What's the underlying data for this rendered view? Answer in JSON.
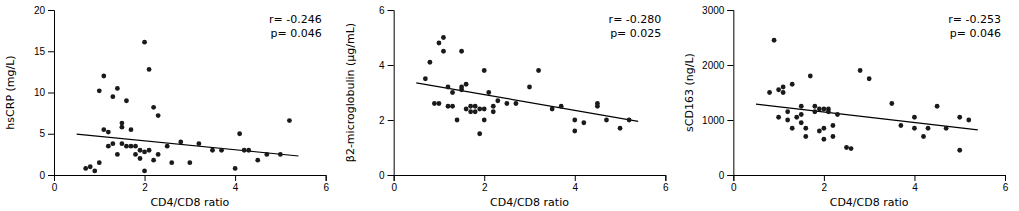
{
  "chart_data": [
    {
      "type": "scatter",
      "xlabel": "CD4/CD8 ratio",
      "ylabel": "hsCRP (mg/L)",
      "annotations": [
        "r= -0.246",
        "p= 0.046"
      ],
      "xlim": [
        0,
        6
      ],
      "ylim": [
        0,
        20
      ],
      "xticks": [
        0,
        2,
        4,
        6
      ],
      "yticks": [
        0,
        5,
        10,
        15,
        20
      ],
      "series": [
        {
          "type": "scatter",
          "color": "#1a1a1a",
          "x": [
            0.7,
            0.8,
            0.9,
            1.0,
            1.0,
            1.1,
            1.1,
            1.2,
            1.2,
            1.3,
            1.3,
            1.4,
            1.4,
            1.5,
            1.5,
            1.5,
            1.6,
            1.6,
            1.7,
            1.7,
            1.8,
            1.8,
            1.9,
            1.9,
            2.0,
            2.0,
            2.0,
            2.1,
            2.1,
            2.2,
            2.2,
            2.3,
            2.3,
            2.5,
            2.6,
            2.8,
            3.0,
            3.2,
            3.5,
            3.7,
            4.0,
            4.1,
            4.2,
            4.3,
            4.5,
            4.7,
            5.0,
            5.2
          ],
          "values": [
            0.8,
            1.0,
            0.5,
            10.2,
            1.5,
            12.0,
            5.5,
            3.5,
            5.2,
            3.8,
            9.5,
            2.5,
            10.5,
            3.8,
            5.8,
            6.3,
            3.5,
            9.0,
            3.5,
            5.5,
            2.5,
            3.5,
            2.0,
            3.0,
            0.5,
            2.8,
            16.1,
            3.0,
            12.8,
            1.8,
            8.2,
            2.5,
            7.2,
            3.5,
            1.5,
            4.0,
            1.5,
            3.8,
            3.0,
            3.0,
            0.8,
            5.0,
            3.0,
            3.0,
            1.8,
            2.5,
            2.5,
            6.6
          ]
        },
        {
          "type": "line",
          "color": "#000000",
          "x": [
            0.5,
            5.4
          ],
          "values": [
            4.95,
            2.3
          ]
        }
      ]
    },
    {
      "type": "scatter",
      "xlabel": "CD4/CD8 ratio",
      "ylabel": "β2-microglobulin (μg/mL)",
      "annotations": [
        "r= -0.280",
        "p= 0.025"
      ],
      "xlim": [
        0,
        6
      ],
      "ylim": [
        0,
        6
      ],
      "xticks": [
        0,
        2,
        4,
        6
      ],
      "yticks": [
        0,
        2,
        4,
        6
      ],
      "series": [
        {
          "type": "scatter",
          "color": "#1a1a1a",
          "x": [
            0.7,
            0.8,
            0.9,
            1.0,
            1.0,
            1.1,
            1.1,
            1.2,
            1.2,
            1.3,
            1.3,
            1.4,
            1.5,
            1.5,
            1.5,
            1.6,
            1.6,
            1.7,
            1.7,
            1.8,
            1.8,
            1.9,
            1.9,
            2.0,
            2.0,
            2.0,
            2.1,
            2.2,
            2.2,
            2.3,
            2.5,
            2.7,
            3.0,
            3.2,
            3.5,
            3.7,
            4.0,
            4.0,
            4.2,
            4.5,
            4.5,
            4.7,
            5.0,
            5.2
          ],
          "values": [
            3.5,
            4.1,
            2.6,
            4.8,
            2.6,
            5.0,
            4.5,
            3.2,
            2.5,
            2.5,
            3.0,
            2.0,
            3.1,
            3.2,
            4.5,
            2.4,
            3.3,
            2.3,
            2.5,
            2.3,
            2.5,
            1.5,
            2.4,
            2.4,
            3.8,
            2.0,
            3.0,
            2.3,
            2.5,
            2.7,
            2.6,
            2.6,
            3.2,
            3.8,
            2.4,
            2.5,
            2.0,
            1.6,
            1.9,
            2.5,
            2.6,
            2.0,
            1.7,
            2.0
          ]
        },
        {
          "type": "line",
          "color": "#000000",
          "x": [
            0.5,
            5.4
          ],
          "values": [
            3.35,
            1.95
          ]
        }
      ]
    },
    {
      "type": "scatter",
      "xlabel": "CD4/CD8 ratio",
      "ylabel": "sCD163 (ng/L)",
      "annotations": [
        "r= -0.253",
        "p= 0.046"
      ],
      "xlim": [
        0,
        6
      ],
      "ylim": [
        0,
        3000
      ],
      "xticks": [
        0,
        2,
        4,
        6
      ],
      "yticks": [
        0,
        1000,
        2000,
        3000
      ],
      "series": [
        {
          "type": "scatter",
          "color": "#1a1a1a",
          "x": [
            0.8,
            0.9,
            1.0,
            1.0,
            1.1,
            1.1,
            1.2,
            1.2,
            1.3,
            1.3,
            1.4,
            1.5,
            1.5,
            1.5,
            1.6,
            1.6,
            1.7,
            1.8,
            1.8,
            1.9,
            1.9,
            2.0,
            2.0,
            2.0,
            2.1,
            2.1,
            2.2,
            2.2,
            2.3,
            2.5,
            2.6,
            2.8,
            3.0,
            3.5,
            3.7,
            4.0,
            4.0,
            4.2,
            4.3,
            4.5,
            4.7,
            5.0,
            5.0,
            5.2
          ],
          "values": [
            1500,
            2450,
            1050,
            1550,
            1600,
            1500,
            1150,
            1000,
            850,
            1650,
            1050,
            1250,
            950,
            1100,
            850,
            700,
            1800,
            1250,
            1150,
            1200,
            800,
            850,
            1200,
            650,
            1200,
            1150,
            900,
            700,
            1100,
            500,
            480,
            1900,
            1750,
            1300,
            900,
            1050,
            850,
            700,
            850,
            1250,
            850,
            1050,
            450,
            1000
          ]
        },
        {
          "type": "line",
          "color": "#000000",
          "x": [
            0.5,
            5.4
          ],
          "values": [
            1290,
            820
          ]
        }
      ]
    }
  ]
}
